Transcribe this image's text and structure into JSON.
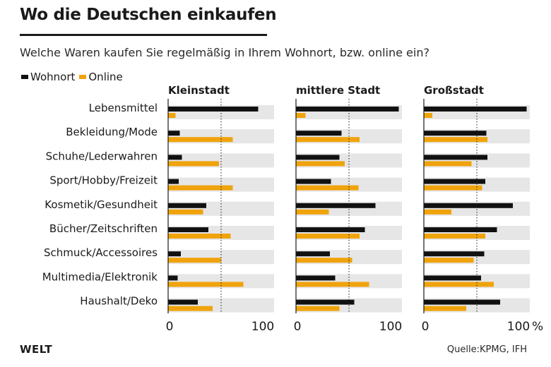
{
  "header": {
    "title": "Wo die Deutschen einkaufen",
    "subtitle": "Welche Waren kaufen Sie regelmäßig in Ihrem Wohnort, bzw. online ein?"
  },
  "legend": [
    {
      "label": "Wohnort",
      "color": "#111111"
    },
    {
      "label": "Online",
      "color": "#f0a30a"
    }
  ],
  "footer": {
    "brand": "WELT",
    "source": "Quelle:KPMG, IFH"
  },
  "chart_data": {
    "type": "bar",
    "orientation": "horizontal",
    "categories": [
      "Lebensmittel",
      "Bekleidung/Mode",
      "Schuhe/Lederwahren",
      "Sport/Hobby/Freizeit",
      "Kosmetik/Gesundheit",
      "Bücher/Zeitschriften",
      "Schmuck/Accessoires",
      "Multimedia/Elektronik",
      "Haushalt/Deko"
    ],
    "xlim": [
      0,
      100
    ],
    "x_ticks": [
      "0",
      "100"
    ],
    "x_unit": "%",
    "reference_line": 50,
    "colors": {
      "wohnort": "#111111",
      "online": "#f0a30a",
      "track": "#e6e6e6"
    },
    "panels": [
      {
        "title": "Kleinstadt",
        "series": [
          {
            "name": "Wohnort",
            "values": [
              85,
              11,
              13,
              10,
              36,
              38,
              12,
              9,
              28
            ]
          },
          {
            "name": "Online",
            "values": [
              7,
              61,
              48,
              61,
              33,
              59,
              50,
              71,
              42
            ]
          }
        ]
      },
      {
        "title": "mittlere Stadt",
        "series": [
          {
            "name": "Wohnort",
            "values": [
              97,
              43,
              41,
              33,
              75,
              65,
              32,
              37,
              55
            ]
          },
          {
            "name": "Online",
            "values": [
              9,
              60,
              46,
              59,
              31,
              60,
              53,
              69,
              41
            ]
          }
        ]
      },
      {
        "title": "Großstadt",
        "series": [
          {
            "name": "Wohnort",
            "values": [
              97,
              59,
              60,
              58,
              84,
              69,
              57,
              54,
              72
            ]
          },
          {
            "name": "Online",
            "values": [
              8,
              60,
              45,
              55,
              26,
              58,
              47,
              66,
              40
            ]
          }
        ]
      }
    ]
  }
}
